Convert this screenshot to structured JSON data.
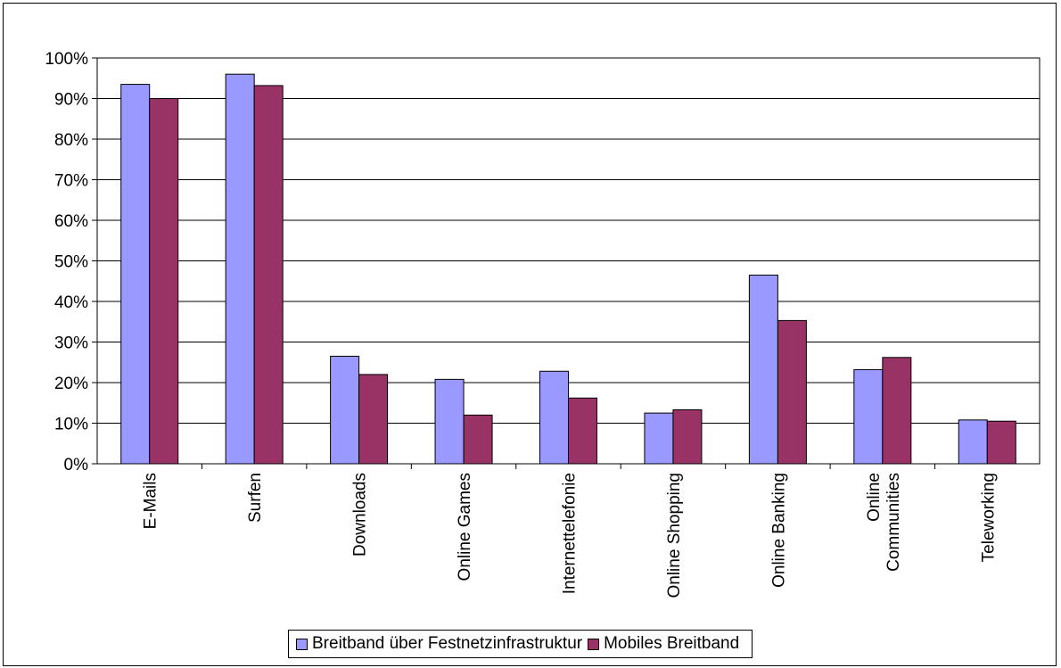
{
  "chart_data": {
    "type": "bar",
    "categories": [
      "E-Mails",
      "Surfen",
      "Downloads",
      "Online Games",
      "Internettelefonie",
      "Online Shopping",
      "Online Banking",
      "Online Communities",
      "Teleworking"
    ],
    "category_label_lines": [
      [
        "E-Mails"
      ],
      [
        "Surfen"
      ],
      [
        "Downloads"
      ],
      [
        "Online Games"
      ],
      [
        "Internettelefonie"
      ],
      [
        "Online Shopping"
      ],
      [
        "Online Banking"
      ],
      [
        "Online",
        "Communities"
      ],
      [
        "Teleworking"
      ]
    ],
    "series": [
      {
        "name": "Breitband über Festnetzinfrastruktur",
        "color": "#9999ff",
        "values": [
          93.5,
          96.0,
          26.5,
          20.8,
          22.8,
          12.5,
          46.5,
          23.2,
          10.8
        ]
      },
      {
        "name": "Mobiles Breitband",
        "color": "#993366",
        "values": [
          90.0,
          93.2,
          22.0,
          12.0,
          16.2,
          13.3,
          35.3,
          26.2,
          10.5
        ]
      }
    ],
    "ylim": [
      0,
      100
    ],
    "yticks": [
      "0%",
      "10%",
      "20%",
      "30%",
      "40%",
      "50%",
      "60%",
      "70%",
      "80%",
      "90%",
      "100%"
    ],
    "grid": true,
    "legend_position": "bottom",
    "title": "",
    "xlabel": "",
    "ylabel": ""
  }
}
